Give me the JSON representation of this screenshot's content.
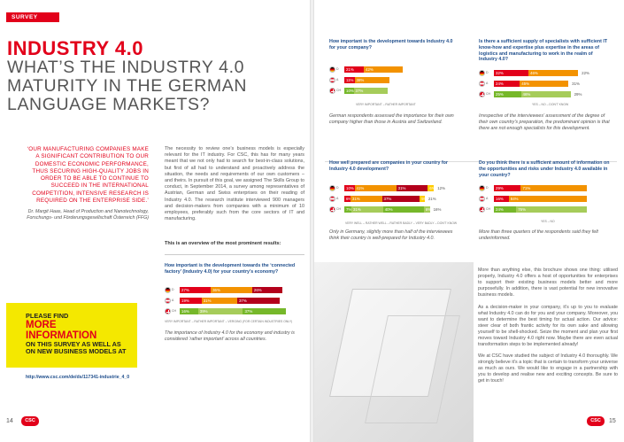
{
  "header": {
    "tag": "SURVEY"
  },
  "title": {
    "line1": "INDUSTRY 4.0",
    "line2": "WHAT’S THE INDUSTRY 4.0 MATURITY IN THE GERMAN LANGUAGE MARKETS?"
  },
  "quote": {
    "text": "‘OUR MANUFACTURING COMPANIES MAKE A SIGNIFICANT CONTRIBUTION TO OUR DOMESTIC ECONOMIC PERFORMANCE, THUS SECURING HIGH-QUALITY JOBS IN ORDER TO BE ABLE TO CONTINUE TO SUCCEED IN THE INTERNATIONAL COMPETITION, INTENSIVE RESEARCH IS REQUIRED ON THE ENTERPRISE SIDE.’",
    "author": "Dr. Margit Haas, Head of Production and Nanotechnology, Forschungs- und Förderungsgesellschaft Österreich (FFG)"
  },
  "intro": {
    "text": "The necessity to review one’s business models is especially relevant for the IT industry. For CSC, this has for many years meant that we not only had to search for best-in-class solutions, but first of all had to understand and proactively address the situation, the needs and requirements of our own customers – and theirs. In pursuit of this goal, we assigned The Skills Group to conduct, in September 2014, a survey among representatives of Austrian, German and Swiss enterprises on their reading of Industry 4.0. The research institute interviewed 900 managers and decision-makers from companies with a minimum of 10 employees, preferably such from the core sectors of IT and manufacturing.",
    "overview": "This is an overview of the most prominent results:"
  },
  "promo": {
    "line1": "PLEASE FIND",
    "line2": "MORE INFORMATION",
    "line3": "ON THIS SURVEY AS WELL AS ON NEW BUSINESS MODELS AT",
    "link": "http://www.csc.com/de/ds/117341-industrie_4_0"
  },
  "pages": {
    "left": "14",
    "right": "15",
    "logo": "CSC"
  },
  "countries": {
    "de": "D",
    "at": "A",
    "ch": "CH"
  },
  "colors": {
    "red": "#e2001a",
    "orange": "#f39200",
    "green": "#76b82a",
    "lightgreen": "#a6cc5a",
    "yellow": "#ffcc00",
    "darkred": "#b3001b",
    "accent_yellow": "#f4e800",
    "blue": "#1f4e8c"
  },
  "charts": [
    {
      "id": "importance",
      "title": "How important is the development towards Industry 4.0 for your company?",
      "legend": "VERY IMPORTANT – RATHER IMPORTANT",
      "note": "German respondents assessed the importance for their own company higher than those in Austria and Switzerland.",
      "rows": [
        {
          "country": "de",
          "segments": [
            {
              "v": 21,
              "label": "21%",
              "c": "red"
            },
            {
              "v": 42,
              "label": "42%",
              "c": "orange"
            }
          ]
        },
        {
          "country": "at",
          "segments": [
            {
              "v": 11,
              "label": "11%",
              "c": "red"
            },
            {
              "v": 38,
              "label": "38%",
              "c": "orange"
            }
          ]
        },
        {
          "country": "ch",
          "segments": [
            {
              "v": 10,
              "label": "10%",
              "c": "green"
            },
            {
              "v": 37,
              "label": "37%",
              "c": "lightgreen"
            }
          ]
        }
      ]
    },
    {
      "id": "know-how",
      "title": "Is there a sufficient supply of specialists with sufficient IT know-how and expertise plus expertise in the areas of logistics and manufacturing to work in the realm of Industry 4.0?",
      "legend": "YES – NO – DON’T KNOW",
      "note": "Irrespective of the interviewees’ assessment of the degree of their own country’s preparation, the predominant opinion is that there are not enough specialists for this development.",
      "rows": [
        {
          "country": "de",
          "segments": [
            {
              "v": 32,
              "label": "32%",
              "c": "red"
            },
            {
              "v": 46,
              "label": "46%",
              "c": "orange"
            }
          ],
          "rest": "22%"
        },
        {
          "country": "at",
          "segments": [
            {
              "v": 24,
              "label": "24%",
              "c": "red"
            },
            {
              "v": 45,
              "label": "45%",
              "c": "orange"
            }
          ],
          "rest": "31%"
        },
        {
          "country": "ch",
          "segments": [
            {
              "v": 25,
              "label": "25%",
              "c": "green"
            },
            {
              "v": 46,
              "label": "46%",
              "c": "lightgreen"
            }
          ],
          "rest": "29%"
        }
      ]
    },
    {
      "id": "prepared",
      "title": "How well prepared are companies in your country for Industry 4.0 development?",
      "legend": "VERY WELL – RATHER WELL – RATHER BADLY – VERY BADLY – DON’T KNOW",
      "note": "Only in Germany, slightly more than half of the interviewees think their country is well-prepared for Industry 4.0.",
      "rows": [
        {
          "country": "de",
          "segments": [
            {
              "v": 10,
              "label": "10%",
              "c": "red"
            },
            {
              "v": 41,
              "label": "41%",
              "c": "orange"
            },
            {
              "v": 31,
              "label": "31%",
              "c": "darkred"
            },
            {
              "v": 6,
              "label": "6%",
              "c": "yellow"
            }
          ],
          "rest": "12%"
        },
        {
          "country": "at",
          "segments": [
            {
              "v": 6,
              "label": "6%",
              "c": "red"
            },
            {
              "v": 31,
              "label": "31%",
              "c": "orange"
            },
            {
              "v": 37,
              "label": "37%",
              "c": "darkred"
            },
            {
              "v": 5,
              "label": "5%",
              "c": "yellow"
            }
          ],
          "rest": "21%"
        },
        {
          "country": "ch",
          "segments": [
            {
              "v": 7,
              "label": "7%",
              "c": "green"
            },
            {
              "v": 31,
              "label": "31%",
              "c": "lightgreen"
            },
            {
              "v": 40,
              "label": "40%",
              "c": "green"
            },
            {
              "v": 6,
              "label": "6%",
              "c": "lightgreen"
            }
          ],
          "rest": "16%"
        }
      ]
    },
    {
      "id": "awareness",
      "title": "Do you think there is a sufficient amount of information on the opportunities and risks under Industry 4.0 available in your country?",
      "legend": "YES – NO",
      "note": "More than three quarters of the respondents said they felt underinformed.",
      "rows": [
        {
          "country": "de",
          "segments": [
            {
              "v": 29,
              "label": "29%",
              "c": "red"
            },
            {
              "v": 71,
              "label": "71%",
              "c": "orange"
            }
          ]
        },
        {
          "country": "at",
          "segments": [
            {
              "v": 16,
              "label": "16%",
              "c": "red"
            },
            {
              "v": 84,
              "label": "84%",
              "c": "orange"
            }
          ]
        },
        {
          "country": "ch",
          "segments": [
            {
              "v": 24,
              "label": "24%",
              "c": "green"
            },
            {
              "v": 76,
              "label": "76%",
              "c": "lightgreen"
            }
          ]
        }
      ]
    },
    {
      "id": "connected-factory",
      "title": "How important is the development towards the ‘connected factory’ (Industry 4.0) for your country’s economy?",
      "legend": "VERY IMPORTANT – RATHER IMPORTANT – VERGING (for certain industries only)",
      "note": "The importance of Industry 4.0 for the economy and industry is considered ‘rather important’ across all countries.",
      "rows": [
        {
          "country": "de",
          "segments": [
            {
              "v": 27,
              "label": "27%",
              "c": "red"
            },
            {
              "v": 36,
              "label": "36%",
              "c": "orange"
            },
            {
              "v": 26,
              "label": "26%",
              "c": "darkred"
            }
          ]
        },
        {
          "country": "at",
          "segments": [
            {
              "v": 19,
              "label": "19%",
              "c": "red"
            },
            {
              "v": 31,
              "label": "31%",
              "c": "orange"
            },
            {
              "v": 37,
              "label": "37%",
              "c": "darkred"
            }
          ]
        },
        {
          "country": "ch",
          "segments": [
            {
              "v": 16,
              "label": "16%",
              "c": "green"
            },
            {
              "v": 39,
              "label": "39%",
              "c": "lightgreen"
            },
            {
              "v": 37,
              "label": "37%",
              "c": "green"
            }
          ]
        }
      ]
    }
  ],
  "right_text": {
    "p1": "More than anything else, this brochure shows one thing: utilised properly, Industry 4.0 offers a host of opportunities for enterprises to support their existing business models better and more purposefully. In addition, there is vast potential for new innovative business models.",
    "p2": "As a decision-maker in your company, it’s up to you to evaluate what Industry 4.0 can do for you and your company. Moreover, you want to determine the best timing for actual action. Our advice: steer clear of both frantic activity for its own sake and allowing yourself to be shell-shocked. Seize the moment and plan your first moves toward Industry 4.0 right now. Maybe there are even actual transformation steps to be implemented already!",
    "p3": "We at CSC have studied the subject of Industry 4.0 thoroughly. We strongly believe it’s a topic that is certain to transform your universe as much as ours. We would like to engage in a partnership with you to develop and realise new and exciting concepts. Be sure to get in touch!"
  }
}
